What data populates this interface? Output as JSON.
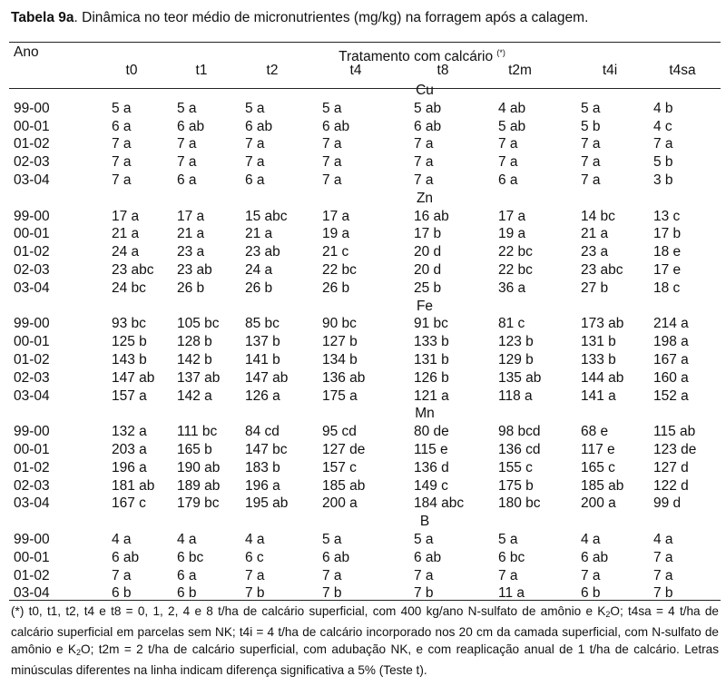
{
  "caption": {
    "bold": "Tabela 9a",
    "text": ". Dinâmica no teor médio de micronutrientes (mg/kg) na forragem após a calagem."
  },
  "header": {
    "ano": "Ano",
    "tratamento": "Tratamento com calcário",
    "tratamento_note": "(*)",
    "columns": [
      "t0",
      "t1",
      "t2",
      "t4",
      "t8",
      "t2m",
      "t4i",
      "t4sa"
    ]
  },
  "groups": [
    {
      "element": "Cu",
      "rows": [
        {
          "year": "99-00",
          "values": [
            "5 a",
            "5 a",
            "5 a",
            "5 a",
            "5 ab",
            "4 ab",
            "5 a",
            "4 b"
          ]
        },
        {
          "year": "00-01",
          "values": [
            "6 a",
            "6 ab",
            "6 ab",
            "6 ab",
            "6 ab",
            "5 ab",
            "5 b",
            "4 c"
          ]
        },
        {
          "year": "01-02",
          "values": [
            "7 a",
            "7 a",
            "7 a",
            "7 a",
            "7 a",
            "7 a",
            "7 a",
            "7 a"
          ]
        },
        {
          "year": "02-03",
          "values": [
            "7 a",
            "7 a",
            "7 a",
            "7 a",
            "7 a",
            "7 a",
            "7 a",
            "5 b"
          ]
        },
        {
          "year": "03-04",
          "values": [
            "7 a",
            "6 a",
            "6 a",
            "7 a",
            "7 a",
            "6 a",
            "7 a",
            "3 b"
          ]
        }
      ]
    },
    {
      "element": "Zn",
      "rows": [
        {
          "year": "99-00",
          "values": [
            "17 a",
            "17 a",
            "15 abc",
            "17 a",
            "16 ab",
            "17 a",
            "14 bc",
            "13 c"
          ]
        },
        {
          "year": "00-01",
          "values": [
            "21 a",
            "21 a",
            "21 a",
            "19 a",
            "17 b",
            "19 a",
            "21 a",
            "17 b"
          ]
        },
        {
          "year": "01-02",
          "values": [
            "24 a",
            "23 a",
            "23 ab",
            "21 c",
            "20 d",
            "22 bc",
            "23 a",
            "18 e"
          ]
        },
        {
          "year": "02-03",
          "values": [
            "23 abc",
            "23 ab",
            "24 a",
            "22 bc",
            "20 d",
            "22 bc",
            "23 abc",
            "17 e"
          ]
        },
        {
          "year": "03-04",
          "values": [
            "24 bc",
            "26 b",
            "26 b",
            "26 b",
            "25 b",
            "36 a",
            "27 b",
            "18 c"
          ]
        }
      ]
    },
    {
      "element": "Fe",
      "rows": [
        {
          "year": "99-00",
          "values": [
            "93 bc",
            "105 bc",
            "85 bc",
            "90 bc",
            "91 bc",
            "81 c",
            "173 ab",
            "214 a"
          ]
        },
        {
          "year": "00-01",
          "values": [
            "125 b",
            "128 b",
            "137 b",
            "127 b",
            "133 b",
            "123 b",
            "131 b",
            "198 a"
          ]
        },
        {
          "year": "01-02",
          "values": [
            "143 b",
            "142 b",
            "141 b",
            "134 b",
            "131 b",
            "129 b",
            "133 b",
            "167 a"
          ]
        },
        {
          "year": "02-03",
          "values": [
            "147 ab",
            "137 ab",
            "147 ab",
            "136 ab",
            "126 b",
            "135 ab",
            "144 ab",
            "160 a"
          ]
        },
        {
          "year": "03-04",
          "values": [
            "157 a",
            "142 a",
            "126 a",
            "175 a",
            "121 a",
            "118 a",
            "141 a",
            "152 a"
          ]
        }
      ]
    },
    {
      "element": "Mn",
      "rows": [
        {
          "year": "99-00",
          "values": [
            "132 a",
            "111 bc",
            "84 cd",
            "95 cd",
            "80 de",
            "98 bcd",
            "68 e",
            "115 ab"
          ]
        },
        {
          "year": "00-01",
          "values": [
            "203 a",
            "165 b",
            "147 bc",
            "127 de",
            "115 e",
            "136 cd",
            "117 e",
            "123 de"
          ]
        },
        {
          "year": "01-02",
          "values": [
            "196 a",
            "190 ab",
            "183 b",
            "157 c",
            "136 d",
            "155 c",
            "165 c",
            "127 d"
          ]
        },
        {
          "year": "02-03",
          "values": [
            "181 ab",
            "189 ab",
            "196 a",
            "185 ab",
            "149 c",
            "175 b",
            "185 ab",
            "122 d"
          ]
        },
        {
          "year": "03-04",
          "values": [
            "167 c",
            "179 bc",
            "195 ab",
            "200 a",
            "184 abc",
            "180 bc",
            "200 a",
            "99 d"
          ]
        }
      ]
    },
    {
      "element": "B",
      "rows": [
        {
          "year": "99-00",
          "values": [
            "4 a",
            "4 a",
            "4 a",
            "5 a",
            "5 a",
            "5 a",
            "4 a",
            "4 a"
          ]
        },
        {
          "year": "00-01",
          "values": [
            "6 ab",
            "6 bc",
            "6 c",
            "6 ab",
            "6 ab",
            "6 bc",
            "6 ab",
            "7 a"
          ]
        },
        {
          "year": "01-02",
          "values": [
            "7 a",
            "6 a",
            "7 a",
            "7 a",
            "7 a",
            "7 a",
            "7 a",
            "7 a"
          ]
        },
        {
          "year": "03-04",
          "values": [
            "6 b",
            "6 b",
            "7 b",
            "7 b",
            "7 b",
            "11 a",
            "6 b",
            "7 b"
          ]
        }
      ]
    }
  ],
  "footnote": {
    "part1": "(*) t0, t1, t2, t4 e t8 = 0, 1, 2, 4 e 8 t/ha de calcário superficial, com 400 kg/ano N-sulfato de amônio e K",
    "sub1": "2",
    "part2": "O; t4sa = 4 t/ha de calcário superficial em parcelas sem NK; t4i = 4 t/ha de calcário incorporado nos 20 cm da camada superficial, com N-sulfato de amônio e K",
    "sub2": "2",
    "part3": "O; t2m = 2 t/ha de calcário superficial, com adubação NK, e com reaplicação anual de 1 t/ha de calcário. Letras minúsculas diferentes na linha indicam diferença significativa a 5% (Teste t)."
  }
}
